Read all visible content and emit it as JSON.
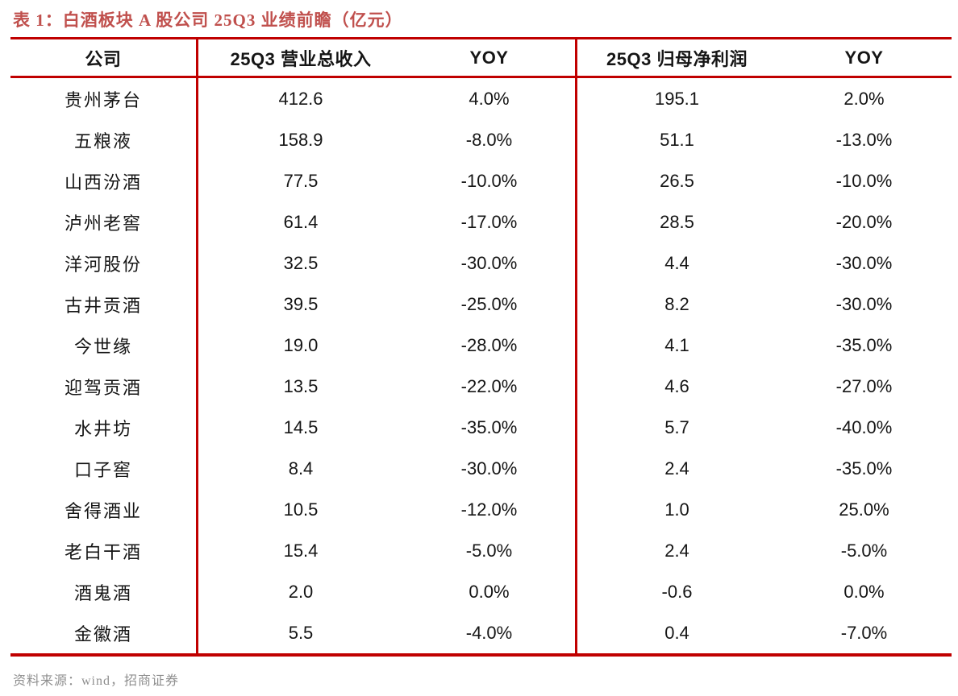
{
  "title": "表 1：白酒板块 A 股公司 25Q3 业绩前瞻（亿元）",
  "colors": {
    "rule_red": "#C00000",
    "title_red": "#C0504D",
    "footer_gray": "#8F8F8F",
    "text": "#151515"
  },
  "table": {
    "headers": [
      "公司",
      "25Q3 营业总收入",
      "YOY",
      "25Q3 归母净利润",
      "YOY"
    ],
    "rows": [
      {
        "company": "贵州茅台",
        "revenue": "412.6",
        "revenue_yoy": "4.0%",
        "profit": "195.1",
        "profit_yoy": "2.0%"
      },
      {
        "company": "五粮液",
        "revenue": "158.9",
        "revenue_yoy": "-8.0%",
        "profit": "51.1",
        "profit_yoy": "-13.0%"
      },
      {
        "company": "山西汾酒",
        "revenue": "77.5",
        "revenue_yoy": "-10.0%",
        "profit": "26.5",
        "profit_yoy": "-10.0%"
      },
      {
        "company": "泸州老窖",
        "revenue": "61.4",
        "revenue_yoy": "-17.0%",
        "profit": "28.5",
        "profit_yoy": "-20.0%"
      },
      {
        "company": "洋河股份",
        "revenue": "32.5",
        "revenue_yoy": "-30.0%",
        "profit": "4.4",
        "profit_yoy": "-30.0%"
      },
      {
        "company": "古井贡酒",
        "revenue": "39.5",
        "revenue_yoy": "-25.0%",
        "profit": "8.2",
        "profit_yoy": "-30.0%"
      },
      {
        "company": "今世缘",
        "revenue": "19.0",
        "revenue_yoy": "-28.0%",
        "profit": "4.1",
        "profit_yoy": "-35.0%"
      },
      {
        "company": "迎驾贡酒",
        "revenue": "13.5",
        "revenue_yoy": "-22.0%",
        "profit": "4.6",
        "profit_yoy": "-27.0%"
      },
      {
        "company": "水井坊",
        "revenue": "14.5",
        "revenue_yoy": "-35.0%",
        "profit": "5.7",
        "profit_yoy": "-40.0%"
      },
      {
        "company": "口子窖",
        "revenue": "8.4",
        "revenue_yoy": "-30.0%",
        "profit": "2.4",
        "profit_yoy": "-35.0%"
      },
      {
        "company": "舍得酒业",
        "revenue": "10.5",
        "revenue_yoy": "-12.0%",
        "profit": "1.0",
        "profit_yoy": "25.0%"
      },
      {
        "company": "老白干酒",
        "revenue": "15.4",
        "revenue_yoy": "-5.0%",
        "profit": "2.4",
        "profit_yoy": "-5.0%"
      },
      {
        "company": "酒鬼酒",
        "revenue": "2.0",
        "revenue_yoy": "0.0%",
        "profit": "-0.6",
        "profit_yoy": "0.0%"
      },
      {
        "company": "金徽酒",
        "revenue": "5.5",
        "revenue_yoy": "-4.0%",
        "profit": "0.4",
        "profit_yoy": "-7.0%"
      }
    ]
  },
  "footer": {
    "source": "资料来源：wind，招商证券"
  }
}
